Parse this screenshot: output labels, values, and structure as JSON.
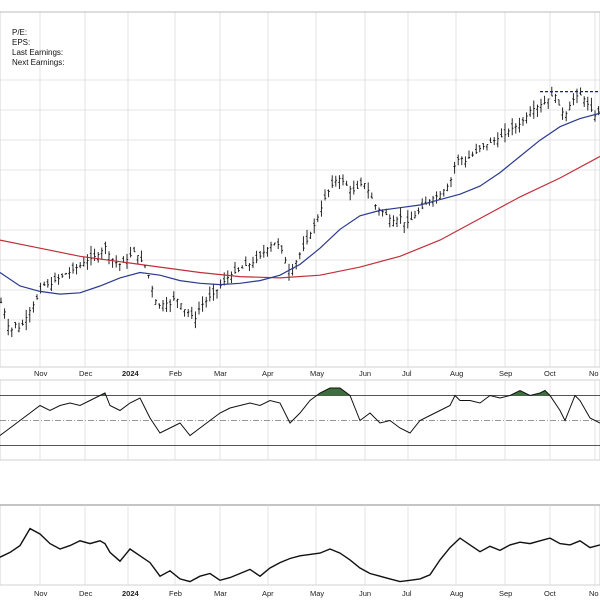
{
  "info": {
    "pe_label": "P/E:",
    "eps_label": "EPS:",
    "last_earnings_label": "Last Earnings:",
    "next_earnings_label": "Next Earnings:"
  },
  "colors": {
    "price_bars": "#111111",
    "ma_short": "#2b3a8f",
    "ma_long": "#c0303a",
    "resistance": "#1a1a9e",
    "rsi_line": "#111111",
    "rsi_overbought_fill": "#3f6e3f",
    "grid": "#dcdcdc"
  },
  "chart_data": [
    {
      "type": "line",
      "panel": "price",
      "x_ticks": [
        "Nov",
        "Dec",
        "2024",
        "Feb",
        "Mar",
        "Apr",
        "May",
        "Jun",
        "Jul",
        "Aug",
        "Sep",
        "Oct",
        "No"
      ],
      "x_tick_bold": [
        false,
        false,
        true,
        false,
        false,
        false,
        false,
        false,
        false,
        false,
        false,
        false,
        false
      ],
      "grid": true,
      "price_path": [
        [
          0,
          0.3
        ],
        [
          5,
          0.2
        ],
        [
          10,
          0.05
        ],
        [
          15,
          0.12
        ],
        [
          20,
          0.08
        ],
        [
          25,
          0.15
        ],
        [
          30,
          0.22
        ],
        [
          35,
          0.28
        ],
        [
          40,
          0.35
        ],
        [
          45,
          0.42
        ],
        [
          50,
          0.4
        ],
        [
          55,
          0.44
        ],
        [
          60,
          0.46
        ],
        [
          65,
          0.49
        ],
        [
          70,
          0.5
        ],
        [
          75,
          0.53
        ],
        [
          80,
          0.55
        ],
        [
          85,
          0.58
        ],
        [
          90,
          0.6
        ],
        [
          95,
          0.62
        ],
        [
          100,
          0.64
        ],
        [
          105,
          0.7
        ],
        [
          110,
          0.62
        ],
        [
          115,
          0.58
        ],
        [
          120,
          0.56
        ],
        [
          125,
          0.58
        ],
        [
          130,
          0.62
        ],
        [
          135,
          0.66
        ],
        [
          140,
          0.6
        ],
        [
          145,
          0.55
        ],
        [
          150,
          0.45
        ],
        [
          155,
          0.3
        ],
        [
          160,
          0.25
        ],
        [
          165,
          0.28
        ],
        [
          170,
          0.26
        ],
        [
          175,
          0.32
        ],
        [
          180,
          0.28
        ],
        [
          185,
          0.22
        ],
        [
          190,
          0.2
        ],
        [
          195,
          0.15
        ],
        [
          200,
          0.25
        ],
        [
          205,
          0.28
        ],
        [
          210,
          0.32
        ],
        [
          215,
          0.35
        ],
        [
          220,
          0.4
        ],
        [
          225,
          0.44
        ],
        [
          230,
          0.48
        ],
        [
          235,
          0.5
        ],
        [
          240,
          0.52
        ],
        [
          245,
          0.55
        ],
        [
          250,
          0.56
        ],
        [
          255,
          0.58
        ],
        [
          260,
          0.62
        ],
        [
          265,
          0.66
        ],
        [
          270,
          0.7
        ],
        [
          275,
          0.72
        ],
        [
          280,
          0.7
        ],
        [
          285,
          0.6
        ],
        [
          290,
          0.5
        ],
        [
          295,
          0.56
        ],
        [
          300,
          0.64
        ],
        [
          305,
          0.7
        ],
        [
          310,
          0.78
        ],
        [
          315,
          0.86
        ],
        [
          320,
          0.95
        ],
        [
          325,
          1.05
        ],
        [
          330,
          1.12
        ],
        [
          335,
          1.18
        ],
        [
          340,
          1.2
        ],
        [
          345,
          1.16
        ],
        [
          350,
          1.12
        ],
        [
          355,
          1.1
        ],
        [
          360,
          1.15
        ],
        [
          365,
          1.16
        ],
        [
          370,
          1.08
        ],
        [
          375,
          1.0
        ],
        [
          380,
          0.96
        ],
        [
          385,
          0.94
        ],
        [
          390,
          0.9
        ],
        [
          395,
          0.88
        ],
        [
          400,
          0.92
        ],
        [
          405,
          0.86
        ],
        [
          410,
          0.88
        ],
        [
          415,
          0.92
        ],
        [
          420,
          0.96
        ],
        [
          425,
          1.0
        ],
        [
          430,
          1.04
        ],
        [
          435,
          1.06
        ],
        [
          440,
          1.08
        ],
        [
          445,
          1.12
        ],
        [
          450,
          1.16
        ],
        [
          455,
          1.3
        ],
        [
          460,
          1.36
        ],
        [
          465,
          1.32
        ],
        [
          470,
          1.36
        ],
        [
          475,
          1.38
        ],
        [
          480,
          1.42
        ],
        [
          485,
          1.44
        ],
        [
          490,
          1.46
        ],
        [
          495,
          1.48
        ],
        [
          500,
          1.5
        ],
        [
          505,
          1.52
        ],
        [
          510,
          1.56
        ],
        [
          515,
          1.58
        ],
        [
          520,
          1.6
        ],
        [
          525,
          1.64
        ],
        [
          530,
          1.7
        ],
        [
          535,
          1.72
        ],
        [
          540,
          1.74
        ],
        [
          545,
          1.76
        ],
        [
          550,
          1.8
        ],
        [
          555,
          1.82
        ],
        [
          560,
          1.72
        ],
        [
          565,
          1.66
        ],
        [
          570,
          1.74
        ],
        [
          575,
          1.8
        ],
        [
          580,
          1.82
        ],
        [
          585,
          1.78
        ],
        [
          590,
          1.72
        ],
        [
          595,
          1.66
        ],
        [
          600,
          1.7
        ]
      ],
      "ma_short_path": [
        [
          0,
          0.5
        ],
        [
          20,
          0.4
        ],
        [
          40,
          0.36
        ],
        [
          60,
          0.34
        ],
        [
          80,
          0.35
        ],
        [
          100,
          0.4
        ],
        [
          120,
          0.46
        ],
        [
          140,
          0.5
        ],
        [
          160,
          0.48
        ],
        [
          180,
          0.44
        ],
        [
          200,
          0.42
        ],
        [
          220,
          0.41
        ],
        [
          240,
          0.42
        ],
        [
          260,
          0.44
        ],
        [
          280,
          0.48
        ],
        [
          300,
          0.56
        ],
        [
          320,
          0.68
        ],
        [
          340,
          0.82
        ],
        [
          360,
          0.92
        ],
        [
          380,
          0.96
        ],
        [
          400,
          0.98
        ],
        [
          420,
          1.0
        ],
        [
          440,
          1.04
        ],
        [
          460,
          1.08
        ],
        [
          480,
          1.14
        ],
        [
          500,
          1.24
        ],
        [
          520,
          1.36
        ],
        [
          540,
          1.48
        ],
        [
          560,
          1.58
        ],
        [
          580,
          1.64
        ],
        [
          600,
          1.68
        ]
      ],
      "ma_long_path": [
        [
          0,
          0.74
        ],
        [
          40,
          0.68
        ],
        [
          80,
          0.62
        ],
        [
          120,
          0.58
        ],
        [
          160,
          0.54
        ],
        [
          200,
          0.5
        ],
        [
          240,
          0.47
        ],
        [
          280,
          0.46
        ],
        [
          320,
          0.48
        ],
        [
          360,
          0.54
        ],
        [
          400,
          0.62
        ],
        [
          440,
          0.74
        ],
        [
          480,
          0.9
        ],
        [
          520,
          1.06
        ],
        [
          560,
          1.2
        ],
        [
          600,
          1.36
        ]
      ],
      "resistance_line": [
        [
          540,
          1.84
        ],
        [
          600,
          1.84
        ]
      ]
    },
    {
      "type": "line",
      "panel": "rsi",
      "overbought": 70,
      "oversold": 30,
      "midline": 50,
      "ylim": [
        20,
        80
      ],
      "path": [
        [
          0,
          38
        ],
        [
          10,
          44
        ],
        [
          20,
          50
        ],
        [
          30,
          56
        ],
        [
          40,
          62
        ],
        [
          50,
          58
        ],
        [
          60,
          62
        ],
        [
          70,
          64
        ],
        [
          80,
          62
        ],
        [
          90,
          66
        ],
        [
          100,
          70
        ],
        [
          105,
          72
        ],
        [
          110,
          62
        ],
        [
          120,
          58
        ],
        [
          130,
          64
        ],
        [
          140,
          68
        ],
        [
          150,
          52
        ],
        [
          160,
          40
        ],
        [
          170,
          44
        ],
        [
          180,
          48
        ],
        [
          190,
          38
        ],
        [
          200,
          44
        ],
        [
          210,
          50
        ],
        [
          220,
          56
        ],
        [
          230,
          60
        ],
        [
          240,
          62
        ],
        [
          250,
          64
        ],
        [
          260,
          62
        ],
        [
          270,
          66
        ],
        [
          280,
          64
        ],
        [
          290,
          48
        ],
        [
          300,
          56
        ],
        [
          310,
          66
        ],
        [
          320,
          72
        ],
        [
          330,
          76
        ],
        [
          340,
          76
        ],
        [
          350,
          70
        ],
        [
          355,
          60
        ],
        [
          360,
          50
        ],
        [
          370,
          56
        ],
        [
          380,
          48
        ],
        [
          390,
          50
        ],
        [
          400,
          44
        ],
        [
          410,
          40
        ],
        [
          420,
          50
        ],
        [
          430,
          54
        ],
        [
          440,
          58
        ],
        [
          450,
          62
        ],
        [
          455,
          70
        ],
        [
          460,
          66
        ],
        [
          470,
          66
        ],
        [
          480,
          64
        ],
        [
          490,
          70
        ],
        [
          500,
          68
        ],
        [
          510,
          70
        ],
        [
          520,
          74
        ],
        [
          530,
          70
        ],
        [
          540,
          72
        ],
        [
          545,
          74
        ],
        [
          550,
          70
        ],
        [
          560,
          58
        ],
        [
          565,
          50
        ],
        [
          570,
          60
        ],
        [
          575,
          70
        ],
        [
          580,
          66
        ],
        [
          590,
          52
        ],
        [
          600,
          48
        ]
      ]
    },
    {
      "type": "line",
      "panel": "indicator",
      "x_ticks": [
        "Nov",
        "Dec",
        "2024",
        "Feb",
        "Mar",
        "Apr",
        "May",
        "Jun",
        "Jul",
        "Aug",
        "Sep",
        "Oct",
        "No"
      ],
      "x_tick_bold": [
        false,
        false,
        true,
        false,
        false,
        false,
        false,
        false,
        false,
        false,
        false,
        false,
        false
      ],
      "ylim": [
        0,
        1
      ],
      "path": [
        [
          0,
          0.38
        ],
        [
          10,
          0.45
        ],
        [
          20,
          0.55
        ],
        [
          30,
          0.8
        ],
        [
          40,
          0.72
        ],
        [
          50,
          0.58
        ],
        [
          60,
          0.5
        ],
        [
          70,
          0.55
        ],
        [
          80,
          0.62
        ],
        [
          90,
          0.58
        ],
        [
          100,
          0.62
        ],
        [
          105,
          0.58
        ],
        [
          110,
          0.45
        ],
        [
          120,
          0.32
        ],
        [
          130,
          0.5
        ],
        [
          140,
          0.4
        ],
        [
          150,
          0.3
        ],
        [
          160,
          0.1
        ],
        [
          170,
          0.18
        ],
        [
          180,
          0.06
        ],
        [
          190,
          0.02
        ],
        [
          200,
          0.1
        ],
        [
          210,
          0.14
        ],
        [
          220,
          0.04
        ],
        [
          230,
          0.08
        ],
        [
          240,
          0.14
        ],
        [
          250,
          0.2
        ],
        [
          260,
          0.1
        ],
        [
          270,
          0.22
        ],
        [
          280,
          0.3
        ],
        [
          290,
          0.36
        ],
        [
          300,
          0.4
        ],
        [
          310,
          0.42
        ],
        [
          320,
          0.44
        ],
        [
          330,
          0.5
        ],
        [
          340,
          0.44
        ],
        [
          350,
          0.34
        ],
        [
          360,
          0.22
        ],
        [
          370,
          0.14
        ],
        [
          380,
          0.1
        ],
        [
          390,
          0.06
        ],
        [
          400,
          0.02
        ],
        [
          410,
          0.04
        ],
        [
          420,
          0.06
        ],
        [
          430,
          0.12
        ],
        [
          440,
          0.34
        ],
        [
          450,
          0.52
        ],
        [
          460,
          0.66
        ],
        [
          470,
          0.56
        ],
        [
          480,
          0.46
        ],
        [
          490,
          0.54
        ],
        [
          500,
          0.48
        ],
        [
          510,
          0.56
        ],
        [
          520,
          0.6
        ],
        [
          530,
          0.58
        ],
        [
          540,
          0.62
        ],
        [
          550,
          0.66
        ],
        [
          560,
          0.58
        ],
        [
          570,
          0.56
        ],
        [
          580,
          0.62
        ],
        [
          590,
          0.52
        ],
        [
          600,
          0.56
        ]
      ]
    }
  ]
}
